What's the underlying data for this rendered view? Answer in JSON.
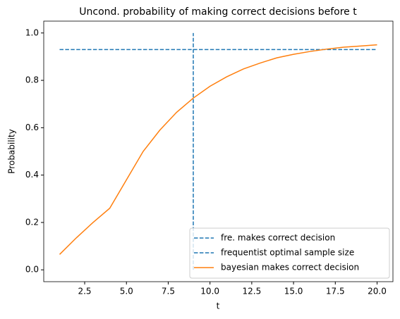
{
  "chart_data": {
    "type": "line",
    "title": "Uncond. probability of making correct decisions before t",
    "x_label": "t",
    "y_label": "Probability",
    "xlim": [
      0.05,
      20.95
    ],
    "ylim": [
      -0.05,
      1.05
    ],
    "xticks": [
      2.5,
      {
        "value": 5,
        "label": "5.0"
      },
      7.5,
      {
        "value": 10,
        "label": "10.0"
      },
      12.5,
      {
        "value": 15,
        "label": "15.0"
      },
      17.5,
      {
        "value": 20,
        "label": "20.0"
      }
    ],
    "yticks": [
      {
        "value": 0,
        "label": "0.0"
      },
      0.2,
      0.4,
      0.6,
      0.8,
      {
        "value": 1,
        "label": "1.0"
      }
    ],
    "legend": "lower right",
    "series": [
      {
        "name": "fre. makes correct decision",
        "color": "#1f77b4",
        "dashed": true,
        "x": [
          1,
          20
        ],
        "values": [
          0.93,
          0.93
        ]
      },
      {
        "name": "frequentist optimal sample size",
        "color": "#1f77b4",
        "dashed": true,
        "x": [
          9,
          9
        ],
        "values": [
          0,
          1
        ]
      },
      {
        "name": "bayesian makes correct decision",
        "color": "#ff7f0e",
        "dashed": false,
        "x": [
          1,
          2,
          3,
          4,
          5,
          6,
          7,
          8,
          9,
          10,
          11,
          12,
          13,
          14,
          15,
          16,
          17,
          18,
          19,
          20
        ],
        "values": [
          0.065,
          0.135,
          0.2,
          0.26,
          0.38,
          0.5,
          0.59,
          0.665,
          0.725,
          0.775,
          0.815,
          0.848,
          0.873,
          0.895,
          0.91,
          0.922,
          0.932,
          0.94,
          0.945,
          0.95
        ]
      }
    ]
  }
}
